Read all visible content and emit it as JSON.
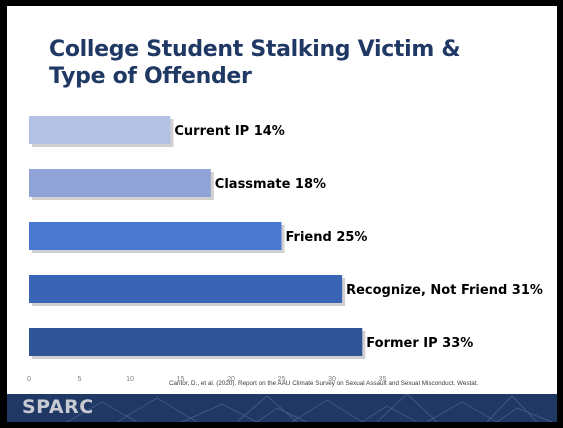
{
  "slide": {
    "title_line1": "College Student Stalking Victim &",
    "title_line2": "Type of Offender",
    "citation": "Cantor, D., et al. (2020). Report on the AAU Climate Survey on Sexual Assault and Sexual Misconduct. Westat.",
    "logo": "SPARC"
  },
  "chart_data": {
    "type": "bar",
    "orientation": "horizontal",
    "title": "College Student Stalking Victim & Type of Offender",
    "categories": [
      "Current IP",
      "Classmate",
      "Friend",
      "Recognize, Not Friend",
      "Former IP"
    ],
    "values": [
      14,
      18,
      25,
      31,
      33
    ],
    "data_labels": [
      "Current IP 14%",
      "Classmate 18%",
      "Friend 25%",
      "Recognize, Not Friend 31%",
      "Former IP 33%"
    ],
    "bar_colors": [
      "#b4c1e4",
      "#8fa3d6",
      "#4a78d1",
      "#3a64b5",
      "#2f5597"
    ],
    "xlim": [
      0,
      35
    ],
    "x_ticks": [
      0,
      5,
      10,
      15,
      20,
      25,
      30,
      35
    ],
    "grid": false,
    "legend": "none"
  },
  "colors": {
    "title": "#1f3864",
    "footer": "#1f3864",
    "background": "#ffffff"
  }
}
